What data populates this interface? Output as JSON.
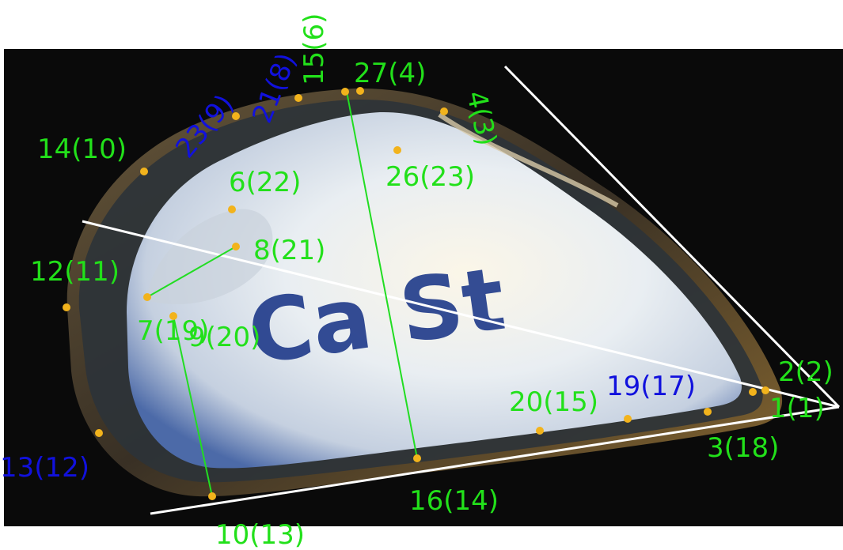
{
  "colors": {
    "background": "#0a0a0a",
    "page": "#ffffff",
    "label_green": "#22e01a",
    "label_blue": "#1111dd",
    "landmark_dot": "#f2b31c",
    "guide_line": "#ffffff",
    "measure_line": "#22dd22",
    "shell_edge": "#7a5a2a",
    "shell_interior": "#e7ecf0",
    "shell_nacre_blue": "#3d5ea8",
    "ink": "#1f3a8a"
  },
  "shell_text": "Ca St",
  "landmarks": [
    {
      "label": "1(1)",
      "color": "green",
      "icon": "landmark-dot"
    },
    {
      "label": "2(2)",
      "color": "green",
      "icon": "landmark-dot"
    },
    {
      "label": "3(18)",
      "color": "green",
      "icon": "landmark-dot"
    },
    {
      "label": "4(3)",
      "color": "green",
      "icon": "landmark-dot"
    },
    {
      "label": "27(4)",
      "color": "green",
      "icon": "landmark-dot"
    },
    {
      "label": "15(6)",
      "color": "green",
      "icon": "landmark-dot"
    },
    {
      "label": "21(8)",
      "color": "blue",
      "icon": "landmark-dot"
    },
    {
      "label": "23(9)",
      "color": "blue",
      "icon": "landmark-dot"
    },
    {
      "label": "14(10)",
      "color": "green",
      "icon": "landmark-dot"
    },
    {
      "label": "6(22)",
      "color": "green",
      "icon": "landmark-dot"
    },
    {
      "label": "26(23)",
      "color": "green",
      "icon": "landmark-dot"
    },
    {
      "label": "8(21)",
      "color": "green",
      "icon": "landmark-dot"
    },
    {
      "label": "12(11)",
      "color": "green",
      "icon": "landmark-dot"
    },
    {
      "label": "7(19)",
      "color": "green",
      "icon": "landmark-dot"
    },
    {
      "label": "9(20)",
      "color": "green",
      "icon": "landmark-dot"
    },
    {
      "label": "13(12)",
      "color": "blue",
      "icon": "landmark-dot"
    },
    {
      "label": "10(13)",
      "color": "green",
      "icon": "landmark-dot"
    },
    {
      "label": "16(14)",
      "color": "green",
      "icon": "landmark-dot"
    },
    {
      "label": "20(15)",
      "color": "green",
      "icon": "landmark-dot"
    },
    {
      "label": "19(17)",
      "color": "blue",
      "icon": "landmark-dot"
    }
  ]
}
